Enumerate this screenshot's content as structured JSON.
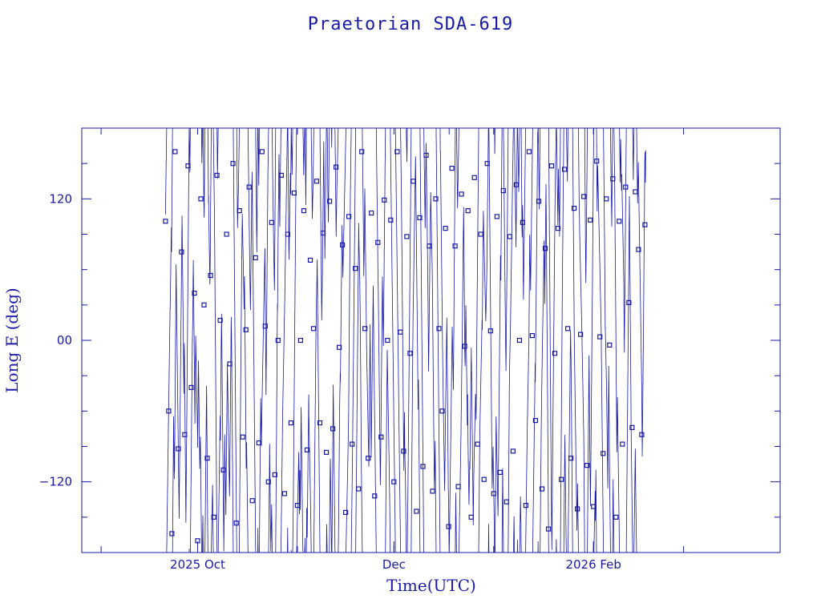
{
  "chart_data": {
    "type": "line",
    "title": "Praetorian SDA-619",
    "xlabel": "Time(UTC)",
    "ylabel": "Long E (deg)",
    "ylim": [
      -180,
      180
    ],
    "xlim": [
      "2025-08-26",
      "2026-03-31"
    ],
    "x_ticks": [
      {
        "date": "2025-10-01",
        "label": "2025 Oct"
      },
      {
        "date": "2025-12-01",
        "label": "Dec"
      },
      {
        "date": "2026-02-01",
        "label": "2026 Feb"
      }
    ],
    "y_ticks": [
      {
        "value": -120,
        "label": "−120"
      },
      {
        "value": 0,
        "label": "00"
      },
      {
        "value": 120,
        "label": "120"
      }
    ],
    "grid": false,
    "legend": "none",
    "marker": "square",
    "color": "#1a1aa6",
    "data_start": "2025-09-21",
    "data_end": "2026-02-17",
    "points": [
      {
        "date": "2025-09-21",
        "value": 101
      },
      {
        "date": "2025-09-22",
        "value": -60
      },
      {
        "date": "2025-09-23",
        "value": -164
      },
      {
        "date": "2025-09-24",
        "value": 160
      },
      {
        "date": "2025-09-25",
        "value": -92
      },
      {
        "date": "2025-09-26",
        "value": 75
      },
      {
        "date": "2025-09-27",
        "value": -80
      },
      {
        "date": "2025-09-28",
        "value": 148
      },
      {
        "date": "2025-09-29",
        "value": -40
      },
      {
        "date": "2025-09-30",
        "value": 40
      },
      {
        "date": "2025-10-01",
        "value": -170
      },
      {
        "date": "2025-10-02",
        "value": 120
      },
      {
        "date": "2025-10-03",
        "value": 30
      },
      {
        "date": "2025-10-04",
        "value": -100
      },
      {
        "date": "2025-10-05",
        "value": 55
      },
      {
        "date": "2025-10-06",
        "value": -150
      },
      {
        "date": "2025-10-07",
        "value": 140
      },
      {
        "date": "2025-10-08",
        "value": 17
      },
      {
        "date": "2025-10-09",
        "value": -110
      },
      {
        "date": "2025-10-10",
        "value": 90
      },
      {
        "date": "2025-10-11",
        "value": -20
      },
      {
        "date": "2025-10-12",
        "value": 150
      },
      {
        "date": "2025-10-13",
        "value": -155
      },
      {
        "date": "2025-10-14",
        "value": 110
      },
      {
        "date": "2025-10-15",
        "value": -82
      },
      {
        "date": "2025-10-16",
        "value": 9
      },
      {
        "date": "2025-10-17",
        "value": 130
      },
      {
        "date": "2025-10-18",
        "value": -136
      },
      {
        "date": "2025-10-19",
        "value": 70
      },
      {
        "date": "2025-10-20",
        "value": -87
      },
      {
        "date": "2025-10-21",
        "value": 160
      },
      {
        "date": "2025-10-22",
        "value": 12
      },
      {
        "date": "2025-10-23",
        "value": -120
      },
      {
        "date": "2025-10-24",
        "value": 100
      },
      {
        "date": "2025-10-25",
        "value": -114
      },
      {
        "date": "2025-10-26",
        "value": 0
      },
      {
        "date": "2025-10-27",
        "value": 140
      },
      {
        "date": "2025-10-28",
        "value": -130
      },
      {
        "date": "2025-10-29",
        "value": 90
      },
      {
        "date": "2025-10-30",
        "value": -70
      },
      {
        "date": "2025-10-31",
        "value": 125
      },
      {
        "date": "2025-11-01",
        "value": -140
      },
      {
        "date": "2025-11-02",
        "value": 0
      },
      {
        "date": "2025-11-03",
        "value": 110
      },
      {
        "date": "2025-11-04",
        "value": -93
      },
      {
        "date": "2025-11-05",
        "value": 68
      },
      {
        "date": "2025-11-06",
        "value": 10
      },
      {
        "date": "2025-11-07",
        "value": 135
      },
      {
        "date": "2025-11-08",
        "value": -70
      },
      {
        "date": "2025-11-09",
        "value": 91
      },
      {
        "date": "2025-11-10",
        "value": -95
      },
      {
        "date": "2025-11-11",
        "value": 118
      },
      {
        "date": "2025-11-12",
        "value": -75
      },
      {
        "date": "2025-11-13",
        "value": 147
      },
      {
        "date": "2025-11-14",
        "value": -6
      },
      {
        "date": "2025-11-15",
        "value": 81
      },
      {
        "date": "2025-11-16",
        "value": -146
      },
      {
        "date": "2025-11-17",
        "value": 105
      },
      {
        "date": "2025-11-18",
        "value": -88
      },
      {
        "date": "2025-11-19",
        "value": 61
      },
      {
        "date": "2025-11-20",
        "value": -126
      },
      {
        "date": "2025-11-21",
        "value": 160
      },
      {
        "date": "2025-11-22",
        "value": 10
      },
      {
        "date": "2025-11-23",
        "value": -100
      },
      {
        "date": "2025-11-24",
        "value": 108
      },
      {
        "date": "2025-11-25",
        "value": -132
      },
      {
        "date": "2025-11-26",
        "value": 83
      },
      {
        "date": "2025-11-27",
        "value": -82
      },
      {
        "date": "2025-11-28",
        "value": 119
      },
      {
        "date": "2025-11-29",
        "value": 0
      },
      {
        "date": "2025-11-30",
        "value": 102
      },
      {
        "date": "2025-12-01",
        "value": -120
      },
      {
        "date": "2025-12-02",
        "value": 160
      },
      {
        "date": "2025-12-03",
        "value": 7
      },
      {
        "date": "2025-12-04",
        "value": -94
      },
      {
        "date": "2025-12-05",
        "value": 88
      },
      {
        "date": "2025-12-06",
        "value": -11
      },
      {
        "date": "2025-12-07",
        "value": 135
      },
      {
        "date": "2025-12-08",
        "value": -145
      },
      {
        "date": "2025-12-09",
        "value": 104
      },
      {
        "date": "2025-12-10",
        "value": -107
      },
      {
        "date": "2025-12-11",
        "value": 157
      },
      {
        "date": "2025-12-12",
        "value": 80
      },
      {
        "date": "2025-12-13",
        "value": -128
      },
      {
        "date": "2025-12-14",
        "value": 120
      },
      {
        "date": "2025-12-15",
        "value": 10
      },
      {
        "date": "2025-12-16",
        "value": -60
      },
      {
        "date": "2025-12-17",
        "value": 95
      },
      {
        "date": "2025-12-18",
        "value": -158
      },
      {
        "date": "2025-12-19",
        "value": 146
      },
      {
        "date": "2025-12-20",
        "value": 80
      },
      {
        "date": "2025-12-21",
        "value": -124
      },
      {
        "date": "2025-12-22",
        "value": 124
      },
      {
        "date": "2025-12-23",
        "value": -5
      },
      {
        "date": "2025-12-24",
        "value": 110
      },
      {
        "date": "2025-12-25",
        "value": -150
      },
      {
        "date": "2025-12-26",
        "value": 138
      },
      {
        "date": "2025-12-27",
        "value": -88
      },
      {
        "date": "2025-12-28",
        "value": 90
      },
      {
        "date": "2025-12-29",
        "value": -118
      },
      {
        "date": "2025-12-30",
        "value": 150
      },
      {
        "date": "2025-12-31",
        "value": 8
      },
      {
        "date": "2026-01-01",
        "value": -130
      },
      {
        "date": "2026-01-02",
        "value": 105
      },
      {
        "date": "2026-01-03",
        "value": -112
      },
      {
        "date": "2026-01-04",
        "value": 127
      },
      {
        "date": "2026-01-05",
        "value": -137
      },
      {
        "date": "2026-01-06",
        "value": 88
      },
      {
        "date": "2026-01-07",
        "value": -94
      },
      {
        "date": "2026-01-08",
        "value": 132
      },
      {
        "date": "2026-01-09",
        "value": 0
      },
      {
        "date": "2026-01-10",
        "value": 100
      },
      {
        "date": "2026-01-11",
        "value": -140
      },
      {
        "date": "2026-01-12",
        "value": 160
      },
      {
        "date": "2026-01-13",
        "value": 4
      },
      {
        "date": "2026-01-14",
        "value": -68
      },
      {
        "date": "2026-01-15",
        "value": 118
      },
      {
        "date": "2026-01-16",
        "value": -126
      },
      {
        "date": "2026-01-17",
        "value": 78
      },
      {
        "date": "2026-01-18",
        "value": -160
      },
      {
        "date": "2026-01-19",
        "value": 148
      },
      {
        "date": "2026-01-20",
        "value": -11
      },
      {
        "date": "2026-01-21",
        "value": 95
      },
      {
        "date": "2026-01-22",
        "value": -118
      },
      {
        "date": "2026-01-23",
        "value": 145
      },
      {
        "date": "2026-01-24",
        "value": 10
      },
      {
        "date": "2026-01-25",
        "value": -100
      },
      {
        "date": "2026-01-26",
        "value": 112
      },
      {
        "date": "2026-01-27",
        "value": -143
      },
      {
        "date": "2026-01-28",
        "value": 5
      },
      {
        "date": "2026-01-29",
        "value": 122
      },
      {
        "date": "2026-01-30",
        "value": -106
      },
      {
        "date": "2026-01-31",
        "value": 102
      },
      {
        "date": "2026-02-01",
        "value": -141
      },
      {
        "date": "2026-02-02",
        "value": 152
      },
      {
        "date": "2026-02-03",
        "value": 3
      },
      {
        "date": "2026-02-04",
        "value": -96
      },
      {
        "date": "2026-02-05",
        "value": 120
      },
      {
        "date": "2026-02-06",
        "value": -4
      },
      {
        "date": "2026-02-07",
        "value": 137
      },
      {
        "date": "2026-02-08",
        "value": -150
      },
      {
        "date": "2026-02-09",
        "value": 101
      },
      {
        "date": "2026-02-10",
        "value": -88
      },
      {
        "date": "2026-02-11",
        "value": 130
      },
      {
        "date": "2026-02-12",
        "value": 32
      },
      {
        "date": "2026-02-13",
        "value": -74
      },
      {
        "date": "2026-02-14",
        "value": 126
      },
      {
        "date": "2026-02-15",
        "value": 77
      },
      {
        "date": "2026-02-16",
        "value": -80
      },
      {
        "date": "2026-02-17",
        "value": 98
      }
    ]
  }
}
